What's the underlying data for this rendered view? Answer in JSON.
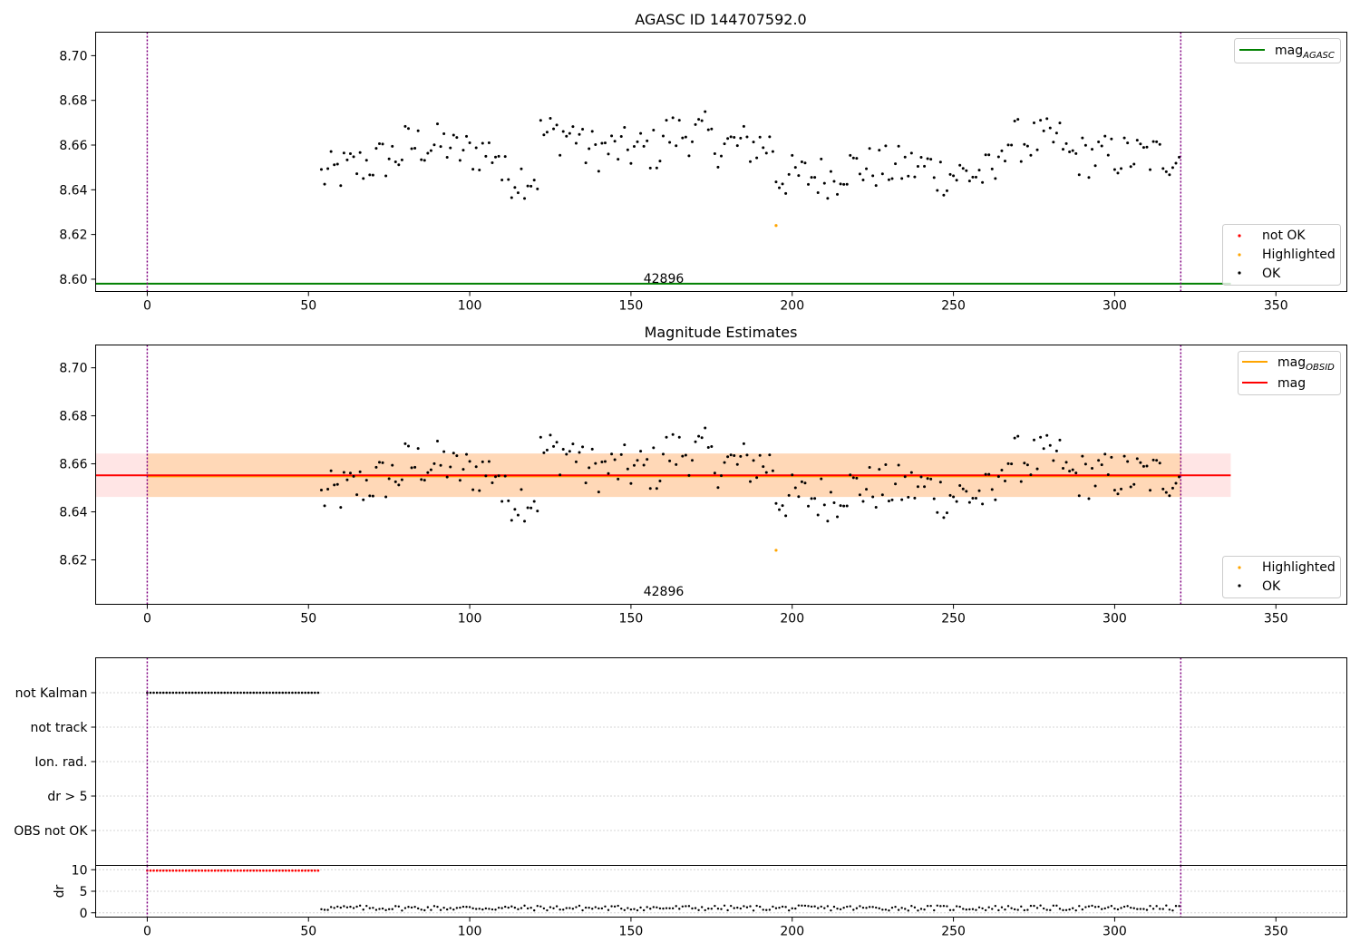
{
  "chart_data": [
    {
      "type": "scatter",
      "title": "AGASC ID 144707592.0",
      "xlim": [
        -16,
        372
      ],
      "ylim": [
        8.5945,
        8.7105
      ],
      "xticks": [
        0,
        50,
        100,
        150,
        200,
        250,
        300,
        350
      ],
      "yticks": [
        8.6,
        8.62,
        8.64,
        8.66,
        8.68,
        8.7
      ],
      "ytick_labels": [
        "8.60",
        "8.62",
        "8.64",
        "8.66",
        "8.68",
        "8.70"
      ],
      "obsid_boundaries": [
        0,
        320.5
      ],
      "obsid_label": "42896",
      "legend_top": [
        {
          "label": "mag",
          "sub": "AGASC",
          "color": "#008000"
        }
      ],
      "legend_bottom": [
        {
          "label": "not OK",
          "color": "#ff0000"
        },
        {
          "label": "Highlighted",
          "color": "#ffa500"
        },
        {
          "label": "OK",
          "color": "#000000"
        }
      ],
      "mag_agasc": 8.598,
      "highlighted": [
        [
          195,
          8.624
        ]
      ]
    },
    {
      "type": "scatter",
      "title": "Magnitude Estimates",
      "xlim": [
        -16,
        372
      ],
      "ylim": [
        8.6015,
        8.7095
      ],
      "xticks": [
        0,
        50,
        100,
        150,
        200,
        250,
        300,
        350
      ],
      "yticks": [
        8.62,
        8.64,
        8.66,
        8.68,
        8.7
      ],
      "ytick_labels": [
        "8.62",
        "8.64",
        "8.66",
        "8.68",
        "8.70"
      ],
      "obsid_label": "42896",
      "legend_top": [
        {
          "label": "mag",
          "sub": "OBSID",
          "color": "#ffa500"
        },
        {
          "label": "mag",
          "sub": "",
          "color": "#ff0000"
        }
      ],
      "legend_bottom": [
        {
          "label": "Highlighted",
          "color": "#ffa500"
        },
        {
          "label": "OK",
          "color": "#000000"
        }
      ],
      "mag_obsid": 8.6548,
      "mag": 8.6552,
      "band": [
        8.6462,
        8.6643
      ],
      "highlighted": [
        [
          195,
          8.624
        ]
      ]
    },
    {
      "type": "scatter",
      "title": "",
      "flag_labels": [
        "not Kalman",
        "not track",
        "Ion. rad.",
        "dr > 5",
        "OBS not OK"
      ],
      "not_kalman_range": [
        0,
        53
      ],
      "dr_ylabel": "dr",
      "dr_yticks": [
        0,
        5,
        10
      ],
      "dr_ylim": [
        -1,
        11
      ],
      "xticks": [
        0,
        50,
        100,
        150,
        200,
        250,
        300,
        350
      ]
    }
  ]
}
